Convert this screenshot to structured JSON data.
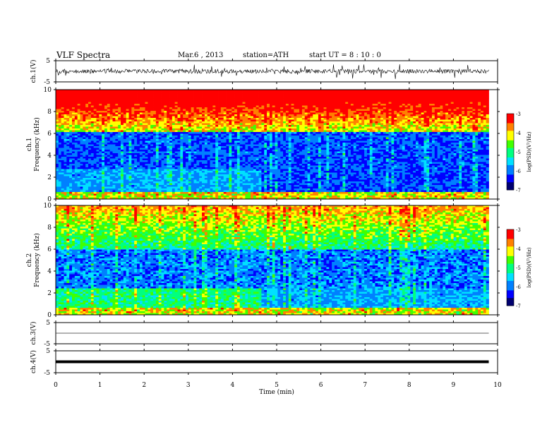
{
  "header": {
    "title": "VLF  Spectra",
    "date": "Mar.6  , 2013",
    "station": "station=ATH",
    "start_ut": "start  UT =   8 : 10 : 0"
  },
  "chart_data": [
    {
      "type": "line",
      "panel": "ch1-waveform",
      "ylabel": "ch.1(V)",
      "ylim": [
        -5,
        5
      ],
      "yticks": [
        "5",
        "-5"
      ],
      "description_values": "noisy waveform around 0 V"
    },
    {
      "type": "heatmap",
      "panel": "ch1-spectrogram",
      "ylabel_channel": "ch.1",
      "ylabel": "Frequency  (kHz)",
      "ylim": [
        0,
        10
      ],
      "yticks": [
        "0",
        "2",
        "4",
        "6",
        "8",
        "10"
      ],
      "colorbar": {
        "label": "log(PSD)(V²/Hz)",
        "range": [
          -7,
          -3
        ],
        "ticks": [
          "-3",
          "-4",
          "-5",
          "-6",
          "-7"
        ]
      }
    },
    {
      "type": "heatmap",
      "panel": "ch2-spectrogram",
      "ylabel_channel": "ch.2",
      "ylabel": "Frequency  (kHz)",
      "ylim": [
        0,
        10
      ],
      "yticks": [
        "0",
        "2",
        "4",
        "6",
        "8",
        "10"
      ],
      "colorbar": {
        "label": "log(PSD)(V²/Hz)",
        "range": [
          -7,
          -3
        ],
        "ticks": [
          "-3",
          "-4",
          "-5",
          "-6",
          "-7"
        ]
      }
    },
    {
      "type": "line",
      "panel": "ch3-waveform",
      "ylabel": "ch.3(V)",
      "ylim": [
        -5,
        5
      ],
      "yticks": [
        "5",
        "-5"
      ]
    },
    {
      "type": "line",
      "panel": "ch4-waveform",
      "ylabel": "ch.4(V)",
      "ylim": [
        -5,
        5
      ],
      "yticks": [
        "5",
        "-5"
      ]
    }
  ],
  "x_axis": {
    "label": "Time  (min)",
    "range": [
      0,
      10
    ],
    "data_end": 9.8,
    "ticks": [
      "0",
      "1",
      "2",
      "3",
      "4",
      "5",
      "6",
      "7",
      "8",
      "9",
      "10"
    ]
  },
  "colors": {
    "scale": [
      "#000070",
      "#0000ff",
      "#0080ff",
      "#00e0ff",
      "#00ff80",
      "#40ff00",
      "#ffff00",
      "#ff8000",
      "#ff0000",
      "#ffffff"
    ]
  }
}
